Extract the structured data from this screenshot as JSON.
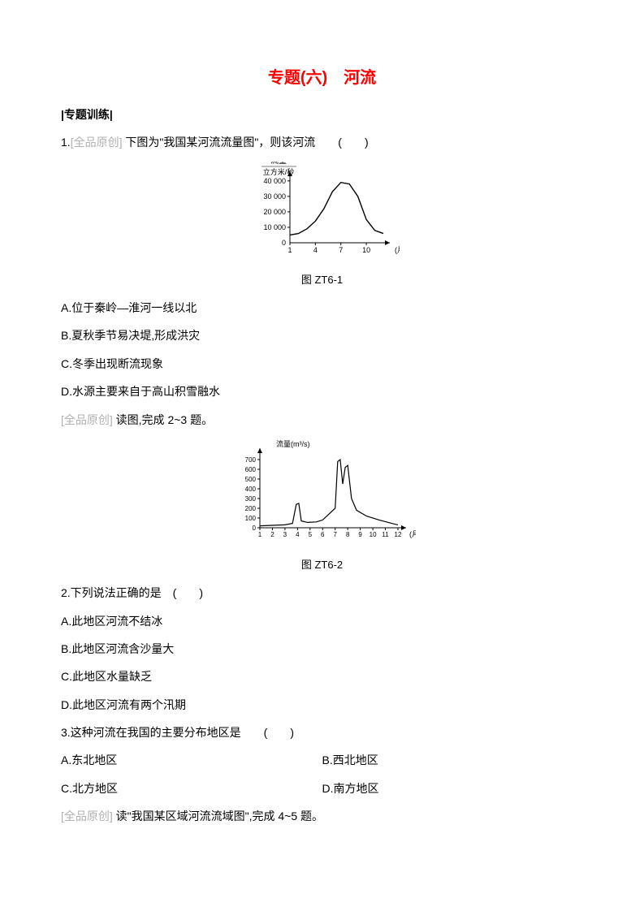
{
  "title": "专题(六)　河流",
  "section_head": "|专题训练|",
  "q1": {
    "tag": "[全品原创]",
    "stem_prefix": "1.",
    "stem": "下图为\"我国某河流流量图\"，则该河流　　(　　)",
    "options": {
      "A": "A.位于秦岭—淮河一线以北",
      "B": "B.夏秋季节易决堤,形成洪灾",
      "C": "C.冬季出现断流现象",
      "D": "D.水源主要来自于高山积雪融水"
    },
    "fig_caption": "图 ZT6-1",
    "chart": {
      "type": "line",
      "ylabel_line1": "流量",
      "ylabel_line2": "立方米/秒",
      "xlabel_suffix": "(月)",
      "y_ticks": [
        "10 000",
        "20 000",
        "30 000",
        "40 000"
      ],
      "x_ticks": [
        "1",
        "4",
        "7",
        "10"
      ],
      "points": [
        {
          "x": 1,
          "y": 5000
        },
        {
          "x": 2,
          "y": 6000
        },
        {
          "x": 3,
          "y": 9000
        },
        {
          "x": 4,
          "y": 14000
        },
        {
          "x": 5,
          "y": 22000
        },
        {
          "x": 6,
          "y": 33000
        },
        {
          "x": 7,
          "y": 39000
        },
        {
          "x": 8,
          "y": 38000
        },
        {
          "x": 9,
          "y": 30000
        },
        {
          "x": 10,
          "y": 15000
        },
        {
          "x": 11,
          "y": 8000
        },
        {
          "x": 12,
          "y": 6000
        }
      ],
      "ylim": [
        0,
        42000
      ],
      "line_color": "#000000",
      "line_width": 1.4
    }
  },
  "intro23": {
    "tag": "[全品原创]",
    "text": "读图,完成 2~3 题。"
  },
  "fig2": {
    "caption": "图 ZT6-2",
    "chart": {
      "type": "line",
      "ylabel": "流量(m³/s)",
      "xlabel_suffix": "(月)",
      "y_ticks": [
        "0",
        "100",
        "200",
        "300",
        "400",
        "500",
        "600",
        "700"
      ],
      "x_ticks": [
        "1",
        "2",
        "3",
        "4",
        "5",
        "6",
        "7",
        "8",
        "9",
        "10",
        "11",
        "12"
      ],
      "points": [
        {
          "x": 1,
          "y": 20
        },
        {
          "x": 2,
          "y": 25
        },
        {
          "x": 3,
          "y": 30
        },
        {
          "x": 3.6,
          "y": 45
        },
        {
          "x": 3.9,
          "y": 240
        },
        {
          "x": 4.1,
          "y": 250
        },
        {
          "x": 4.3,
          "y": 70
        },
        {
          "x": 4.8,
          "y": 55
        },
        {
          "x": 5.5,
          "y": 60
        },
        {
          "x": 6,
          "y": 80
        },
        {
          "x": 6.5,
          "y": 140
        },
        {
          "x": 7,
          "y": 200
        },
        {
          "x": 7.2,
          "y": 680
        },
        {
          "x": 7.4,
          "y": 700
        },
        {
          "x": 7.6,
          "y": 450
        },
        {
          "x": 7.8,
          "y": 620
        },
        {
          "x": 8.0,
          "y": 640
        },
        {
          "x": 8.3,
          "y": 300
        },
        {
          "x": 8.7,
          "y": 180
        },
        {
          "x": 9.5,
          "y": 120
        },
        {
          "x": 10.5,
          "y": 80
        },
        {
          "x": 11.5,
          "y": 45
        },
        {
          "x": 12,
          "y": 30
        }
      ],
      "ylim": [
        0,
        750
      ],
      "line_color": "#000000",
      "line_width": 1.2
    }
  },
  "q2": {
    "stem": "2.下列说法正确的是　(　　)",
    "options": {
      "A": "A.此地区河流不结冰",
      "B": "B.此地区河流含沙量大",
      "C": "C.此地区水量缺乏",
      "D": "D.此地区河流有两个汛期"
    }
  },
  "q3": {
    "stem": "3.这种河流在我国的主要分布地区是　　(　　)",
    "options": {
      "A": "A.东北地区",
      "B": "B.西北地区",
      "C": "C.北方地区",
      "D": "D.南方地区"
    }
  },
  "intro45": {
    "tag": "[全品原创]",
    "text": "读\"我国某区域河流流域图\",完成 4~5 题。"
  }
}
